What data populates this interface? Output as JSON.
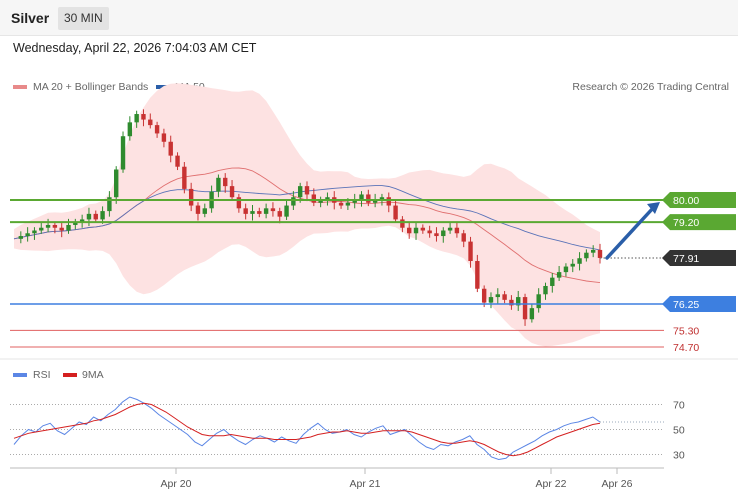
{
  "header": {
    "symbol": "Silver",
    "timeframe": "30 MIN",
    "datetime": "Wednesday, April 22, 2026 7:04:03 AM CET"
  },
  "legend": {
    "ma20_label": "MA 20 + Bollinger Bands",
    "ma50_label": "MA 50",
    "copyright": "Research © 2026 Trading Central",
    "rsi_label": "RSI",
    "rsi_ma_label": "9MA"
  },
  "colors": {
    "resistance": "#5aa832",
    "support": "#3d7fe0",
    "red_level": "#e06060",
    "arrow": "#2a5ea8",
    "ma20": "#e07070",
    "ma50": "#5a73b8",
    "bollinger_fill": "#fde2e2",
    "candle_up": "#2e8b2e",
    "candle_down": "#c83232",
    "rsi": "#5b86e5",
    "rsi_ma": "#d42020",
    "last_price_bg": "#333333"
  },
  "chart_data": {
    "type": "candlestick",
    "timeframe": "30 MIN",
    "x_ticks": [
      "Apr 20",
      "Apr 21",
      "Apr 22",
      "Apr 26"
    ],
    "price_levels": [
      {
        "value": "80.00",
        "kind": "resistance"
      },
      {
        "value": "79.20",
        "kind": "resistance"
      },
      {
        "value": "77.91",
        "kind": "last"
      },
      {
        "value": "76.25",
        "kind": "support"
      },
      {
        "value": "75.30",
        "kind": "red"
      },
      {
        "value": "74.70",
        "kind": "red"
      }
    ],
    "price_close_path": [
      78.6,
      78.7,
      78.8,
      78.9,
      79.0,
      79.1,
      79.0,
      78.9,
      79.1,
      79.2,
      79.3,
      79.5,
      79.3,
      79.6,
      80.1,
      81.1,
      82.3,
      82.8,
      83.1,
      82.9,
      82.7,
      82.4,
      82.1,
      81.6,
      81.2,
      80.4,
      79.8,
      79.5,
      79.7,
      80.3,
      80.8,
      80.5,
      80.1,
      79.7,
      79.5,
      79.6,
      79.5,
      79.7,
      79.6,
      79.4,
      79.8,
      80.1,
      80.5,
      80.2,
      79.9,
      80.0,
      80.1,
      79.9,
      79.8,
      79.9,
      80.0,
      80.2,
      79.9,
      80.0,
      80.1,
      79.8,
      79.3,
      79.0,
      78.8,
      79.0,
      78.9,
      78.8,
      78.7,
      78.9,
      79.0,
      78.8,
      78.5,
      77.8,
      76.8,
      76.3,
      76.5,
      76.6,
      76.4,
      76.2,
      76.5,
      75.7,
      76.1,
      76.6,
      76.9,
      77.2,
      77.4,
      77.6,
      77.7,
      77.9,
      78.1,
      78.2,
      77.91
    ],
    "rsi": {
      "y_ticks": [
        70,
        50,
        30
      ],
      "ylim": [
        20,
        80
      ],
      "rsi_values": [
        38,
        45,
        50,
        48,
        53,
        55,
        49,
        46,
        51,
        56,
        54,
        60,
        57,
        62,
        66,
        72,
        76,
        74,
        71,
        67,
        62,
        58,
        54,
        50,
        46,
        40,
        37,
        42,
        47,
        50,
        45,
        41,
        38,
        42,
        45,
        43,
        40,
        44,
        41,
        39,
        46,
        51,
        55,
        50,
        47,
        48,
        50,
        46,
        44,
        48,
        51,
        53,
        46,
        48,
        50,
        45,
        40,
        36,
        34,
        38,
        37,
        40,
        42,
        45,
        38,
        34,
        28,
        26,
        27,
        32,
        35,
        38,
        41,
        45,
        48,
        50,
        53,
        55,
        56,
        58,
        60,
        56
      ],
      "ma_values": [
        43,
        45,
        47,
        48,
        49,
        50,
        51,
        52,
        53,
        54,
        55,
        57,
        58,
        60,
        62,
        65,
        68,
        70,
        71,
        70,
        67,
        64,
        60,
        56,
        52,
        49,
        46,
        45,
        45,
        45,
        46,
        45,
        44,
        43,
        43,
        43,
        42,
        42,
        42,
        42,
        43,
        44,
        46,
        47,
        48,
        48,
        49,
        48,
        47,
        47,
        48,
        49,
        49,
        49,
        49,
        48,
        46,
        44,
        42,
        40,
        39,
        39,
        40,
        41,
        40,
        38,
        35,
        32,
        30,
        29,
        30,
        32,
        35,
        38,
        41,
        44,
        46,
        48,
        50,
        52,
        54,
        55
      ]
    }
  }
}
